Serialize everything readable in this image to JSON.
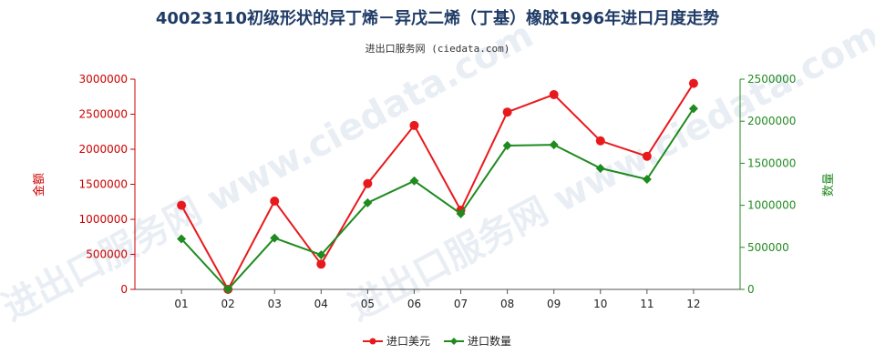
{
  "chart_data": {
    "type": "line",
    "title": "40023110初级形状的异丁烯－异戊二烯（丁基）橡胶1996年进口月度走势",
    "subtitle": "进出口服务网 (ciedata.com)",
    "watermark": "进出口服务网 www.ciedata.com",
    "categories": [
      "01",
      "02",
      "03",
      "04",
      "05",
      "06",
      "07",
      "08",
      "09",
      "10",
      "11",
      "12"
    ],
    "ylabel_left": "金额",
    "ylabel_right": "数量",
    "ylim_left": [
      0,
      3000000
    ],
    "ylim_right": [
      0,
      2500000
    ],
    "yticks_left": [
      "0",
      "500000",
      "1000000",
      "1500000",
      "2000000",
      "2500000",
      "3000000"
    ],
    "yticks_right": [
      "0",
      "500000",
      "1000000",
      "1500000",
      "2000000",
      "2500000"
    ],
    "legend_position": "bottom-center",
    "series": [
      {
        "name": "进口美元",
        "axis": "left",
        "color": "#e8191c",
        "marker": "circle",
        "values": [
          1200000,
          0,
          1260000,
          360000,
          1510000,
          2340000,
          1130000,
          2530000,
          2780000,
          2120000,
          1900000,
          2940000
        ]
      },
      {
        "name": "进口数量",
        "axis": "right",
        "color": "#1e8b1e",
        "marker": "diamond",
        "values": [
          600000,
          0,
          610000,
          410000,
          1030000,
          1290000,
          900000,
          1710000,
          1720000,
          1440000,
          1310000,
          2150000
        ]
      }
    ]
  }
}
